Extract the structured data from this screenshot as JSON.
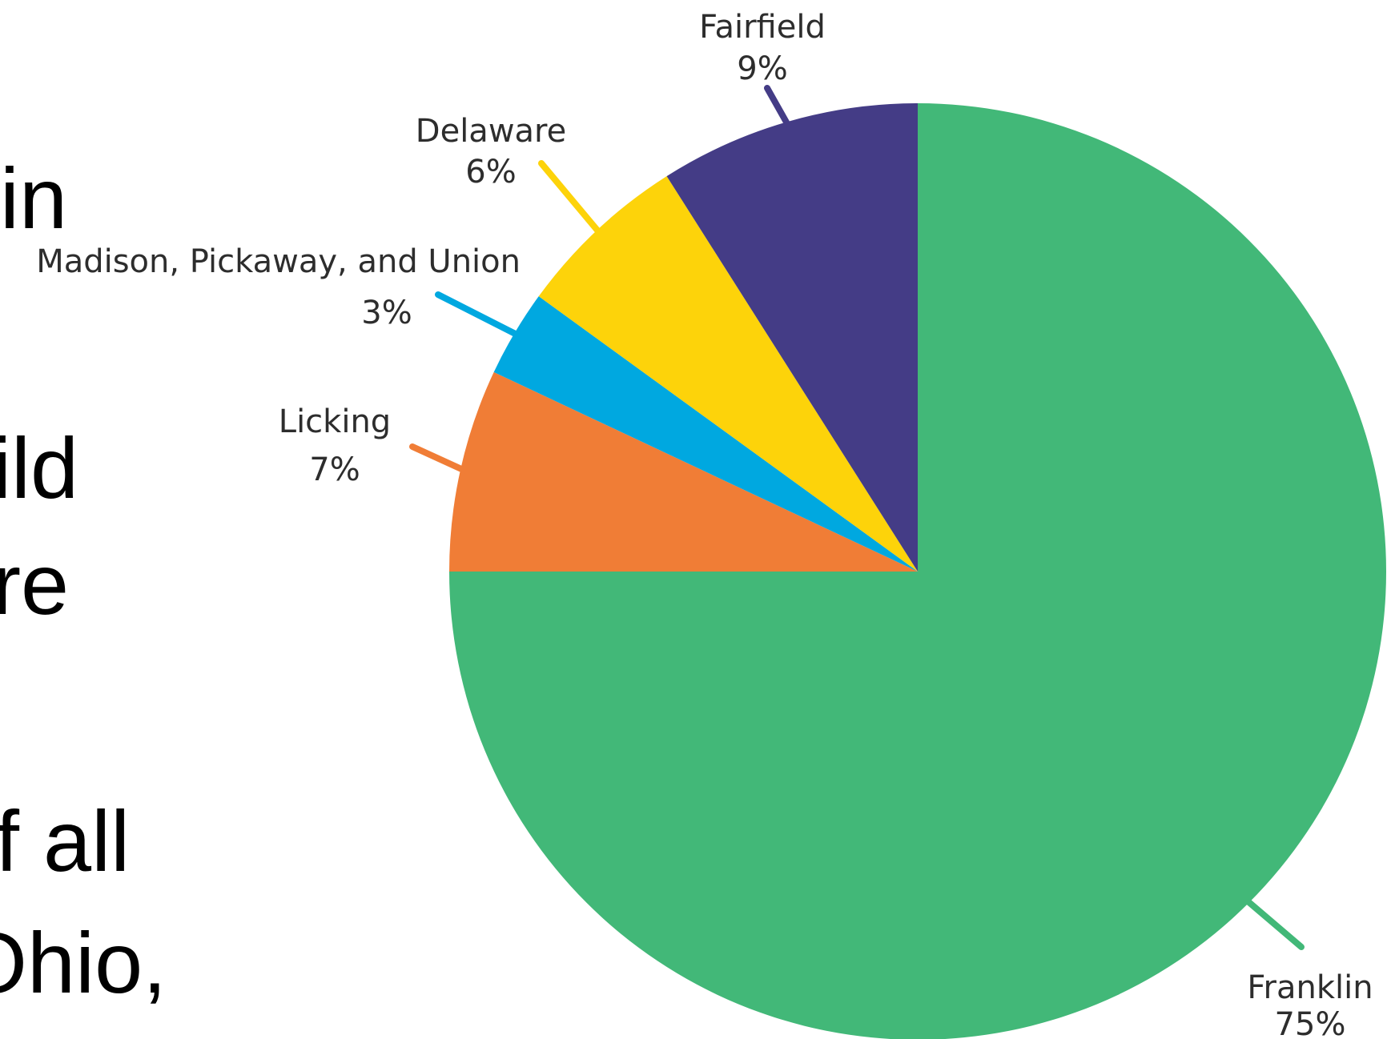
{
  "slide_fragments": [
    "in",
    "hild",
    "are",
    "f all",
    "Ohio,"
  ],
  "chart_data": {
    "type": "pie",
    "categories": [
      "Franklin",
      "Licking",
      "Madison, Pickaway, and Union",
      "Delaware",
      "Fairfield"
    ],
    "values": [
      75,
      7,
      3,
      6,
      9
    ],
    "value_labels": [
      "75%",
      "7%",
      "3%",
      "6%",
      "9%"
    ],
    "unit": "%",
    "colors": [
      "#42b878",
      "#f07d36",
      "#00a8e0",
      "#fdd30a",
      "#443c86"
    ],
    "start_angle_deg": 0,
    "direction": "clockwise-from-top",
    "title": "",
    "legend": "none"
  }
}
